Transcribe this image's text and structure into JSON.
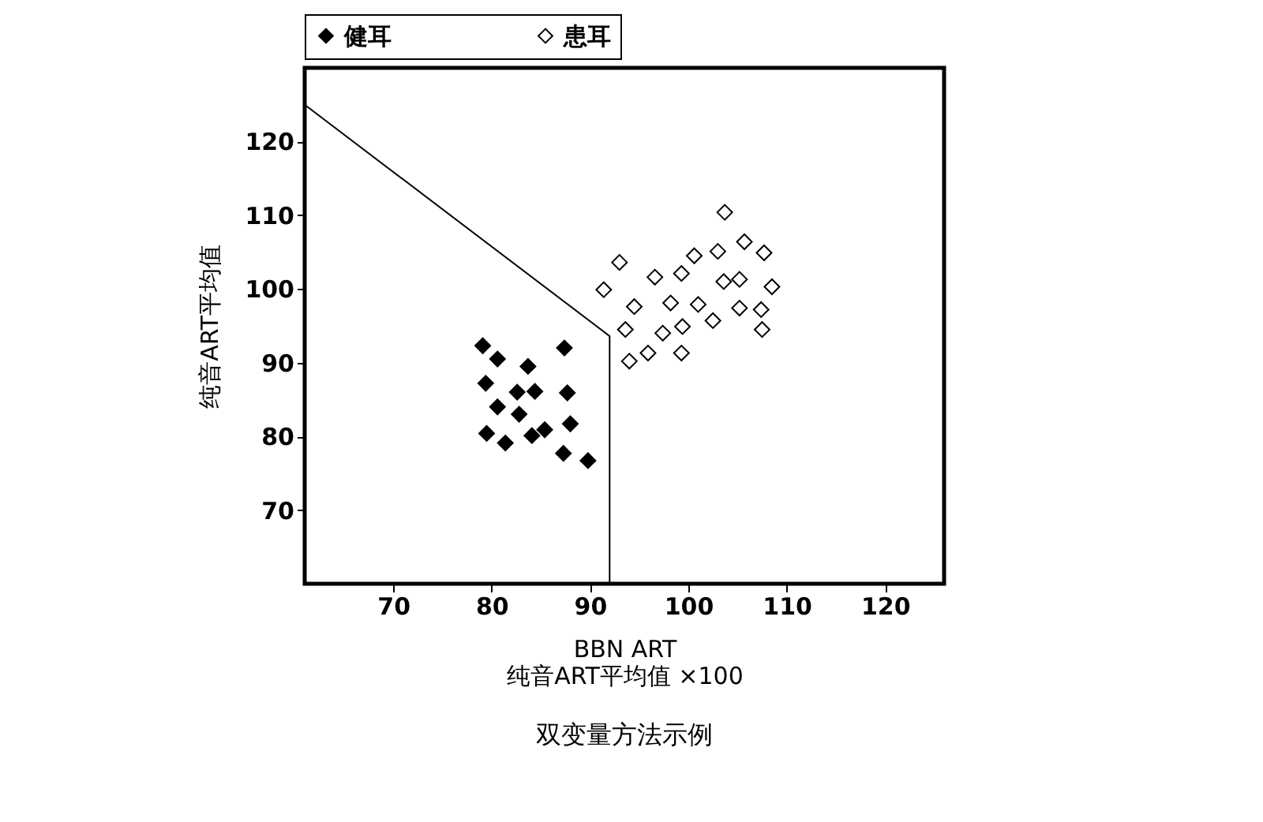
{
  "chart_data": {
    "type": "scatter",
    "title": "双变量方法示例",
    "xlabel": "BBN ART\n纯音ART平均值 ×100",
    "ylabel": "纯音ART平均值",
    "xlim": [
      61,
      126
    ],
    "ylim": [
      60,
      130
    ],
    "xticks": [
      70,
      80,
      90,
      100,
      110,
      120
    ],
    "yticks": [
      70,
      80,
      90,
      100,
      110,
      120
    ],
    "grid": false,
    "legend": "top",
    "marker": "diamond",
    "series": [
      {
        "name": "健耳",
        "color": "#000000",
        "x": [
          79.1,
          80.6,
          83.7,
          87.4,
          79.4,
          82.6,
          84.4,
          87.7,
          80.6,
          82.8,
          88.0,
          79.5,
          81.4,
          84.1,
          85.4,
          87.3,
          89.8
        ],
        "values": [
          92.3,
          90.5,
          89.5,
          92.0,
          87.2,
          86.0,
          86.1,
          85.9,
          84.0,
          83.0,
          81.7,
          80.4,
          79.1,
          80.1,
          80.9,
          77.7,
          76.7
        ]
      },
      {
        "name": "患耳",
        "color": "#ffffff",
        "x": [
          91.4,
          93.0,
          93.6,
          94.5,
          94.0,
          95.9,
          96.6,
          97.4,
          98.2,
          99.3,
          99.4,
          99.3,
          100.6,
          101.0,
          102.5,
          103.0,
          103.7,
          103.6,
          105.2,
          105.2,
          105.7,
          107.4,
          107.7,
          107.5,
          108.5
        ],
        "values": [
          99.9,
          103.6,
          94.5,
          97.6,
          90.2,
          91.3,
          101.6,
          94.0,
          98.1,
          102.1,
          94.9,
          91.3,
          104.5,
          97.9,
          95.7,
          105.1,
          110.4,
          101.0,
          101.3,
          97.4,
          106.4,
          97.2,
          104.9,
          94.5,
          100.3
        ]
      },
      {
        "type": "line",
        "color": "#000000",
        "line_style": "solid",
        "marker": "none",
        "x": [
          61,
          92,
          92
        ],
        "values": [
          125,
          93.6,
          60
        ]
      }
    ]
  }
}
